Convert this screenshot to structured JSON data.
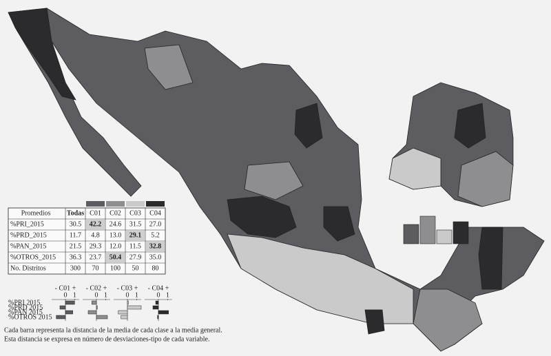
{
  "table": {
    "header": [
      "Promedios",
      "Todas",
      "C01",
      "C02",
      "C03",
      "C04"
    ],
    "class_colors": [
      "#5b5b60",
      "#8e8e91",
      "#cacaca",
      "#2b2b2e"
    ],
    "rows": [
      {
        "label": "%PRI_2015",
        "cells": [
          "30.5",
          "42.2",
          "24.6",
          "31.5",
          "27.0"
        ]
      },
      {
        "label": "%PRD_2015",
        "cells": [
          "11.7",
          "4.8",
          "13.0",
          "29.1",
          "5.2"
        ]
      },
      {
        "label": "%PAN_2015",
        "cells": [
          "21.5",
          "29.3",
          "12.0",
          "11.5",
          "32.8"
        ]
      },
      {
        "label": "%OTROS_2015",
        "cells": [
          "36.3",
          "23.7",
          "50.4",
          "27.9",
          "35.0"
        ]
      },
      {
        "label": "No. Distritos",
        "cells": [
          300,
          70,
          100,
          50,
          80
        ]
      }
    ],
    "highlight": [
      [
        0,
        1
      ],
      [
        1,
        3
      ],
      [
        2,
        4
      ],
      [
        3,
        2
      ]
    ]
  },
  "bar_charts": {
    "variables": [
      "%PRI 2015",
      "%PRD 2015",
      "%PAN 2015",
      "%OTROS 2015"
    ],
    "xlim": [
      -1.5,
      1.5
    ],
    "xticks": [
      0,
      1
    ],
    "panels": [
      {
        "title": "- C01 +",
        "values": [
          1.0,
          -0.6,
          0.8,
          -1.0
        ]
      },
      {
        "title": "- C02 +",
        "values": [
          -0.5,
          0.1,
          -0.9,
          1.2
        ]
      },
      {
        "title": "- C03 +",
        "values": [
          0.1,
          1.5,
          -1.0,
          -0.7
        ]
      },
      {
        "title": "- C04 +",
        "values": [
          -0.3,
          -0.6,
          1.1,
          -0.1
        ]
      }
    ]
  },
  "caption": [
    "Cada barra representa la distancia de la media de cada clase a la media general.",
    "Esta distancia se expresa en número de desviaciones-tipo de cada variable."
  ]
}
